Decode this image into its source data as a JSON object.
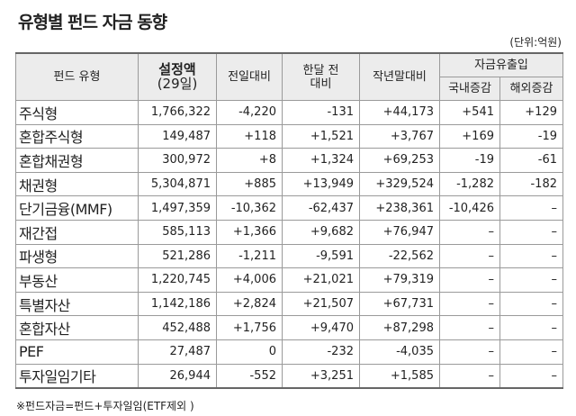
{
  "header": {
    "title": "유형별 펀드 자금 동향",
    "unit": "(단위:억원)"
  },
  "table": {
    "columns": {
      "type": "펀드 유형",
      "setting": "설정액",
      "setting_date": "(29일)",
      "prev_day": "전일대비",
      "month_ago": [
        "한달 전",
        "대비"
      ],
      "year_end": "작년말대비",
      "flow": "자금유출입",
      "domestic": "국내증감",
      "overseas": "해외증감"
    },
    "rows": [
      [
        "주식형",
        "1,766,322",
        "-4,220",
        "-131",
        "+44,173",
        "+541",
        "+129"
      ],
      [
        "혼합주식형",
        "149,487",
        "+118",
        "+1,521",
        "+3,767",
        "+169",
        "-19"
      ],
      [
        "혼합채권형",
        "300,972",
        "+8",
        "+1,324",
        "+69,253",
        "-19",
        "-61"
      ],
      [
        "채권형",
        "5,304,871",
        "+885",
        "+13,949",
        "+329,524",
        "-1,282",
        "-182"
      ],
      [
        "단기금융(MMF)",
        "1,497,359",
        "-10,362",
        "-62,437",
        "+238,361",
        "-10,426",
        "–"
      ],
      [
        "재간접",
        "585,113",
        "+1,366",
        "+9,682",
        "+76,947",
        "–",
        "–"
      ],
      [
        "파생형",
        "521,286",
        "-1,211",
        "-9,591",
        "-22,562",
        "–",
        "–"
      ],
      [
        "부동산",
        "1,220,745",
        "+4,006",
        "+21,021",
        "+79,319",
        "–",
        "–"
      ],
      [
        "특별자산",
        "1,142,186",
        "+2,824",
        "+21,507",
        "+67,731",
        "–",
        "–"
      ],
      [
        "혼합자산",
        "452,488",
        "+1,756",
        "+9,470",
        "+87,298",
        "–",
        "–"
      ],
      [
        "PEF",
        "27,487",
        "0",
        "-232",
        "-4,035",
        "–",
        "–"
      ],
      [
        "투자일임기타",
        "26,944",
        "-552",
        "+3,251",
        "+1,585",
        "–",
        "–"
      ]
    ]
  },
  "footnote": "※펀드자금=펀드+투자일임(ETF제외 )"
}
